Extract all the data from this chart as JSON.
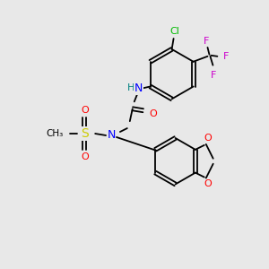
{
  "background_color": "#e8e8e8",
  "bond_color": "#000000",
  "atom_colors": {
    "N": "#0000ff",
    "O": "#ff0000",
    "S": "#cccc00",
    "Cl": "#00bb00",
    "F": "#cc00cc",
    "C": "#000000",
    "H": "#008080"
  },
  "figsize": [
    3.0,
    3.0
  ],
  "dpi": 100
}
